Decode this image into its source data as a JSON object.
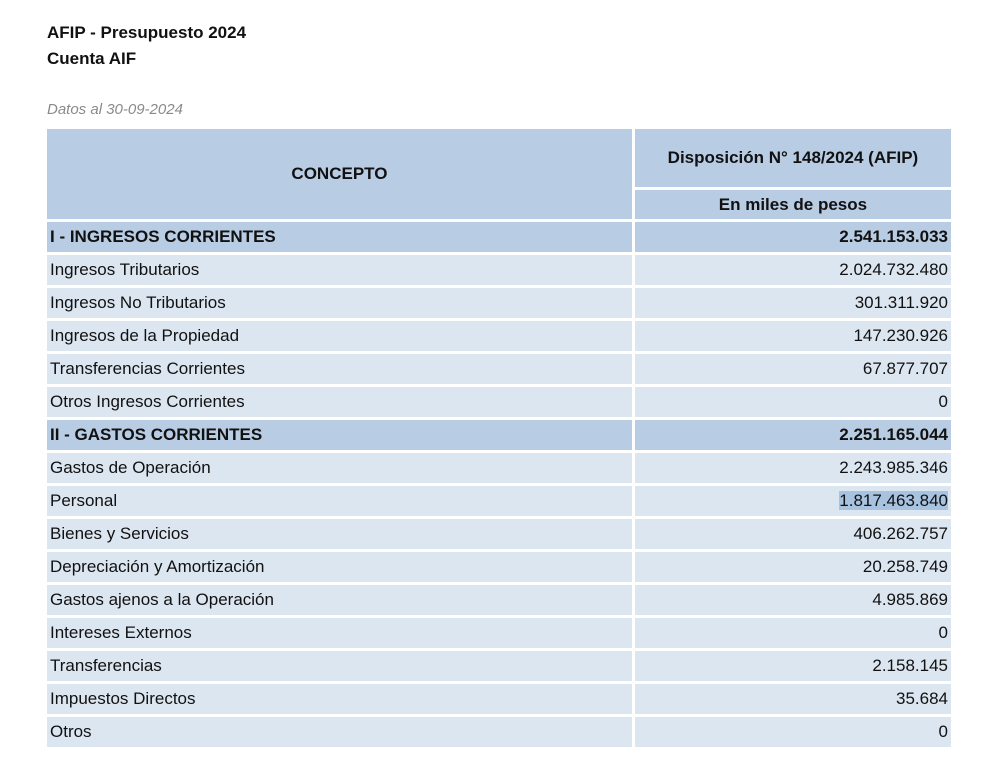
{
  "document": {
    "title": "AFIP - Presupuesto 2024",
    "subtitle": "Cuenta AIF",
    "data_date": "Datos al 30-09-2024"
  },
  "table": {
    "header_concept": "CONCEPTO",
    "header_disposition": "Disposición N° 148/2024 (AFIP)",
    "header_units": "En miles de pesos",
    "rows": [
      {
        "concept": "I - INGRESOS CORRIENTES",
        "value": "2.541.153.033"
      },
      {
        "concept": "Ingresos Tributarios",
        "value": "2.024.732.480"
      },
      {
        "concept": "Ingresos No Tributarios",
        "value": "301.311.920"
      },
      {
        "concept": "Ingresos de la Propiedad",
        "value": "147.230.926"
      },
      {
        "concept": "Transferencias Corrientes",
        "value": "67.877.707"
      },
      {
        "concept": "Otros Ingresos Corrientes",
        "value": "0"
      },
      {
        "concept": "II - GASTOS CORRIENTES",
        "value": "2.251.165.044"
      },
      {
        "concept": "Gastos de Operación",
        "value": "2.243.985.346"
      },
      {
        "concept": "Personal",
        "value": "1.817.463.840"
      },
      {
        "concept": "Bienes y Servicios",
        "value": "406.262.757"
      },
      {
        "concept": "Depreciación y Amortización",
        "value": "20.258.749"
      },
      {
        "concept": "Gastos ajenos a la Operación",
        "value": "4.985.869"
      },
      {
        "concept": "Intereses Externos",
        "value": "0"
      },
      {
        "concept": "Transferencias",
        "value": "2.158.145"
      },
      {
        "concept": "Impuestos Directos",
        "value": "35.684"
      },
      {
        "concept": "Otros",
        "value": "0"
      }
    ]
  },
  "colors": {
    "header_blue": "#b8cce4",
    "row_light_blue": "#dce6f1",
    "selection_highlight": "#a7c3e0",
    "date_gray": "#8a8a8a"
  }
}
